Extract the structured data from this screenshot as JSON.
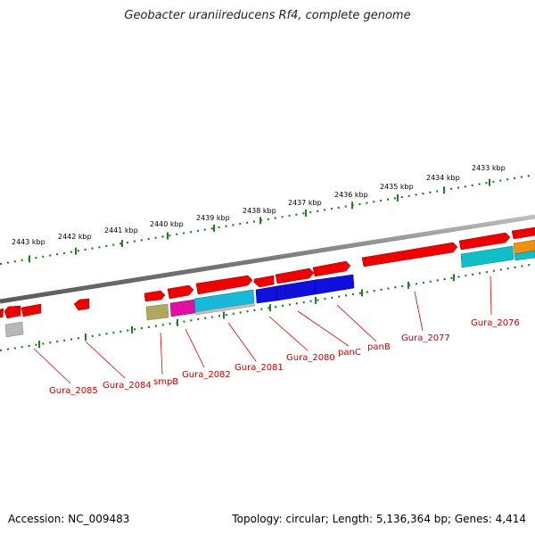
{
  "title": "Geobacter uraniireducens Rf4, complete genome",
  "footer": {
    "accession": "Accession: NC_009483",
    "summary": "Topology: circular; Length: 5,136,364 bp; Genes: 4,414"
  },
  "colors": {
    "backbone": "#8a8a8a",
    "tick": "#1e7d1e",
    "label_line": "#dd0000",
    "label_text": "#cc0000",
    "gene_red": "#ee0000",
    "gene_blue": "#1010dd",
    "gene_cyan": "#18b8d8",
    "gene_teal": "#10c0c8",
    "gene_magenta": "#e010a0",
    "gene_olive": "#b0a860",
    "gene_grey": "#b8b8b8",
    "gene_orange": "#f09010"
  },
  "kbp_labels": [
    "2443 kbp",
    "2442 kbp",
    "2441 kbp",
    "2440 kbp",
    "2439 kbp",
    "2438 kbp",
    "2437 kbp",
    "2436 kbp",
    "2435 kbp",
    "2434 kbp",
    "2433 kbp"
  ],
  "gene_labels": [
    "Gura_2085",
    "Gura_2084",
    "smpB",
    "Gura_2082",
    "Gura_2081",
    "Gura_2080",
    "panC",
    "panB",
    "Gura_2077",
    "Gura_2076"
  ]
}
